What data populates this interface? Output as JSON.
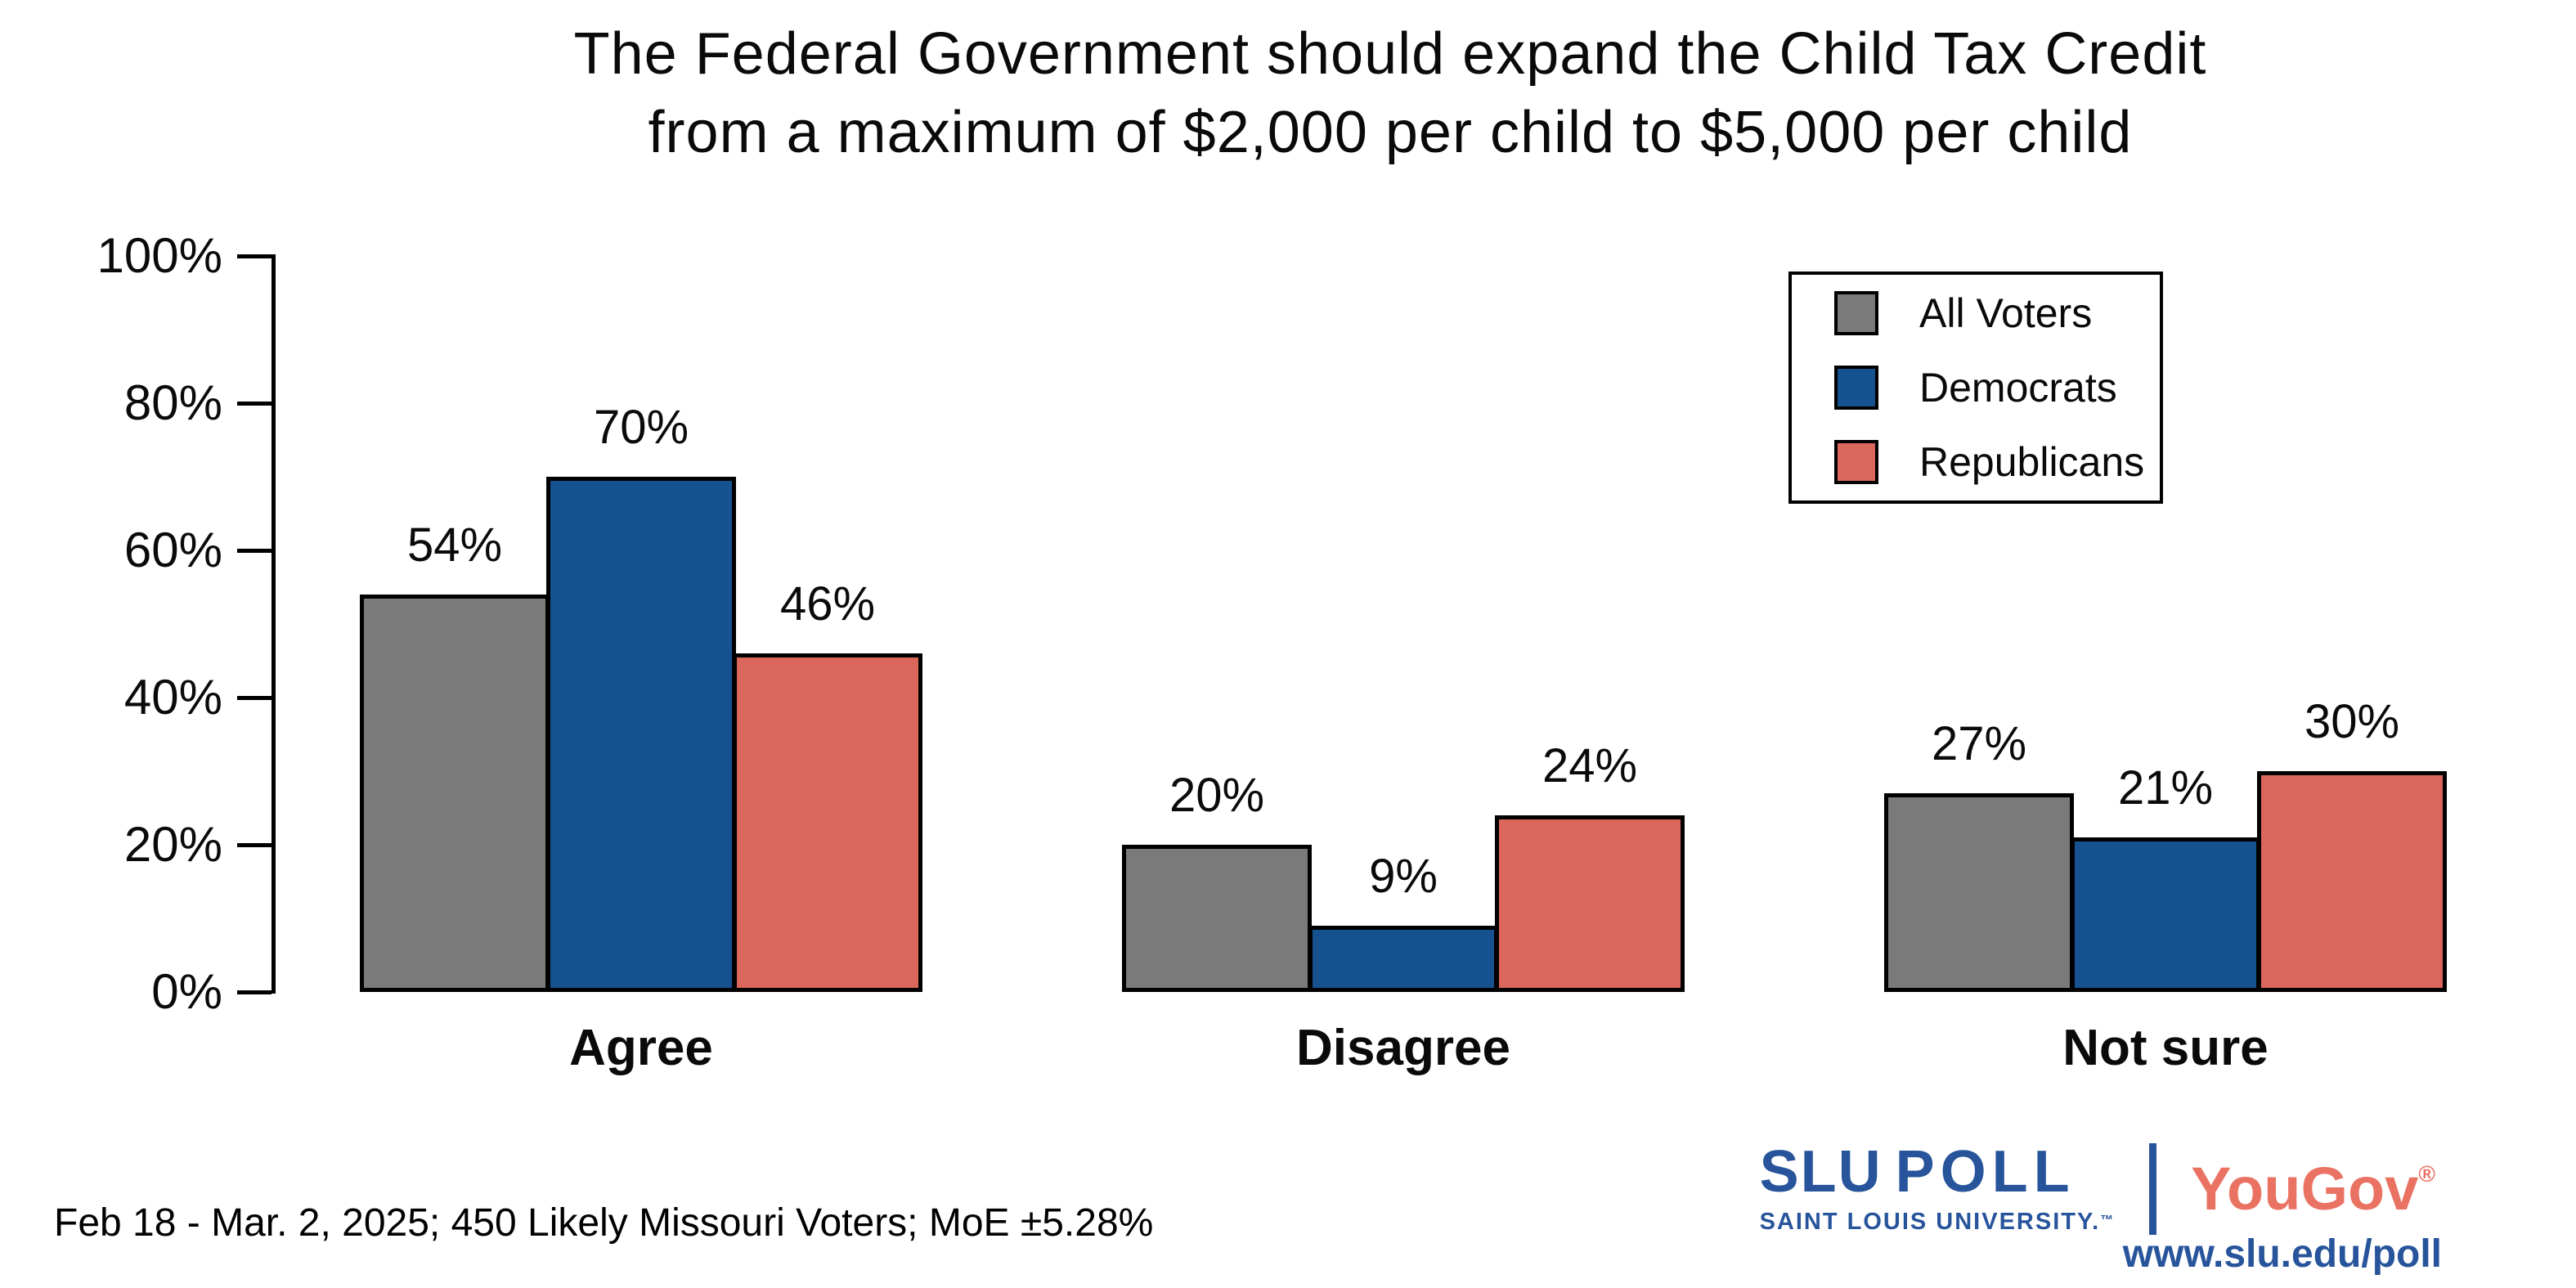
{
  "title": {
    "line1": "The Federal Government should expand the Child Tax Credit",
    "line2": "from a maximum of $2,000 per child to $5,000 per child"
  },
  "chart_data": {
    "type": "bar",
    "categories": [
      "Agree",
      "Disagree",
      "Not sure"
    ],
    "series": [
      {
        "name": "All Voters",
        "color": "#7A7A7A",
        "values": [
          54,
          20,
          27
        ]
      },
      {
        "name": "Democrats",
        "color": "#15528F",
        "values": [
          70,
          9,
          21
        ]
      },
      {
        "name": "Republicans",
        "color": "#DB675C",
        "values": [
          46,
          24,
          30
        ]
      }
    ],
    "value_labels": [
      [
        "54%",
        "70%",
        "46%"
      ],
      [
        "20%",
        "9%",
        "24%"
      ],
      [
        "27%",
        "21%",
        "30%"
      ]
    ],
    "yticks": [
      0,
      20,
      40,
      60,
      80,
      100
    ],
    "ytick_suffix": "%",
    "ylim": [
      0,
      100
    ],
    "grid": false,
    "legend_position": "top-right",
    "bar_border_color": "#000000"
  },
  "legend": {
    "items": [
      {
        "label": "All Voters",
        "color": "#7A7A7A"
      },
      {
        "label": "Democrats",
        "color": "#15528F"
      },
      {
        "label": "Republicans",
        "color": "#DB675C"
      }
    ]
  },
  "footer": {
    "note": "Feb 18 - Mar. 2, 2025; 450 Likely Missouri Voters; MoE ±5.28%"
  },
  "branding": {
    "slu": "SLU",
    "poll": "POLL",
    "subtitle": "SAINT LOUIS UNIVERSITY.",
    "trademark": "™",
    "yougov": "YouGov",
    "registered": "®",
    "url": "www.slu.edu/poll",
    "navy": "#27549B",
    "salmon": "#EA7263"
  }
}
